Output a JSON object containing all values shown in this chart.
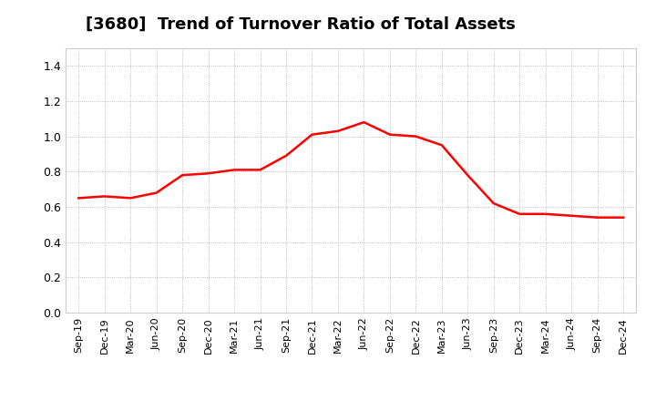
{
  "title": "[3680]  Trend of Turnover Ratio of Total Assets",
  "title_fontsize": 13,
  "background_color": "#ffffff",
  "line_color": "#ff0000",
  "line_width": 1.8,
  "xlabels": [
    "Sep-19",
    "Dec-19",
    "Mar-20",
    "Jun-20",
    "Sep-20",
    "Dec-20",
    "Mar-21",
    "Jun-21",
    "Sep-21",
    "Dec-21",
    "Mar-22",
    "Jun-22",
    "Sep-22",
    "Dec-22",
    "Mar-23",
    "Jun-23",
    "Sep-23",
    "Dec-23",
    "Mar-24",
    "Jun-24",
    "Sep-24",
    "Dec-24"
  ],
  "values": [
    0.65,
    0.66,
    0.65,
    0.68,
    0.78,
    0.79,
    0.81,
    0.81,
    0.89,
    1.01,
    1.03,
    1.08,
    1.01,
    1.0,
    0.95,
    0.78,
    0.62,
    0.56,
    0.56,
    0.55,
    0.54,
    0.54
  ],
  "ylim": [
    0.0,
    1.5
  ],
  "yticks": [
    0.0,
    0.2,
    0.4,
    0.6,
    0.8,
    1.0,
    1.2,
    1.4
  ],
  "grid_color": "#aaaaaa",
  "grid_style": "dotted"
}
